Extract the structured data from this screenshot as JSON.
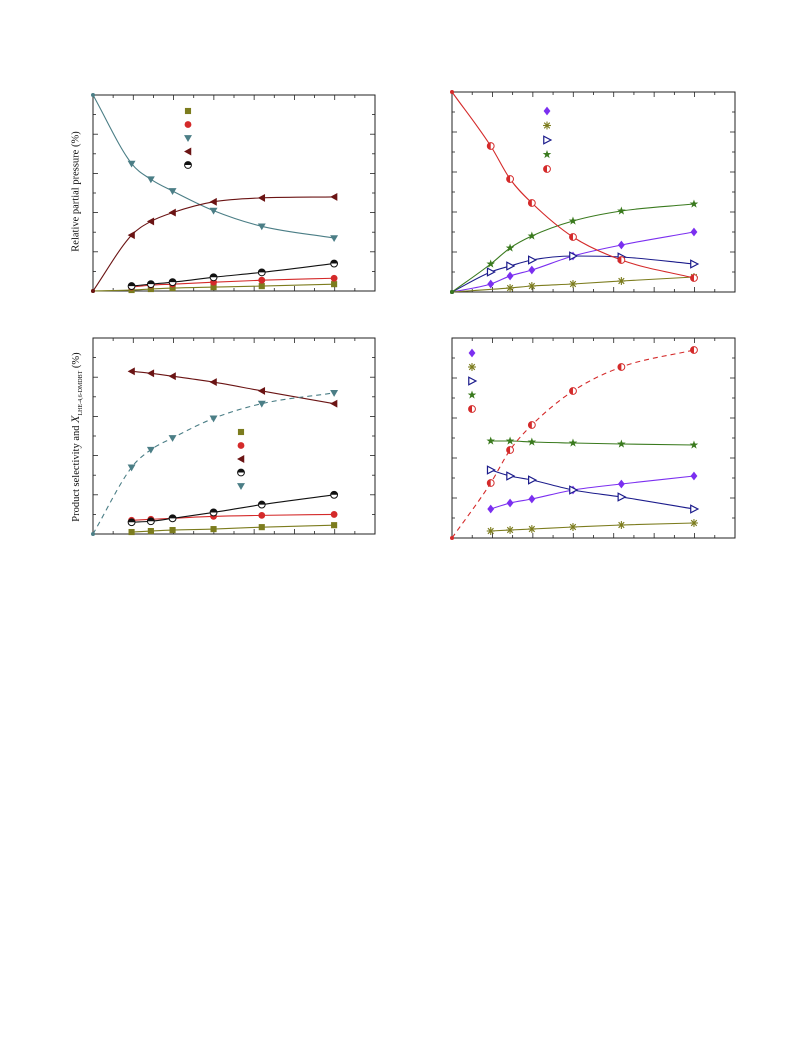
{
  "labels": {
    "ylabel_top": "Relative partial pressure (%)",
    "ylabel_bottom_pre": "Product selectivity and ",
    "ylabel_bottom_symbol": "X",
    "ylabel_bottom_sub": "LHE-4,6-DMDBT",
    "ylabel_bottom_post": " (%)"
  },
  "colors": {
    "olive": "#7c7c1e",
    "red": "#d42a2a",
    "teal": "#4b7e86",
    "maroon": "#6b1414",
    "black": "#111111",
    "purple": "#7b2ff0",
    "navy": "#1c1c8c",
    "green": "#3a7a1e"
  },
  "chart_data": [
    {
      "type": "scatter",
      "panel": "top-left",
      "xlim": [
        0,
        1
      ],
      "ylim": [
        0,
        100
      ],
      "legend": "top-center",
      "series": [
        {
          "marker": "square",
          "color": "olive",
          "x": [
            0,
            0.16,
            0.24,
            0.33,
            0.5,
            0.7,
            1.0
          ],
          "y": [
            0,
            0.5,
            1,
            1.5,
            2,
            2.5,
            3.5
          ],
          "fit": "solid"
        },
        {
          "marker": "circle",
          "color": "red",
          "x": [
            0.16,
            0.24,
            0.33,
            0.5,
            0.7,
            1.0
          ],
          "y": [
            2,
            3,
            3.5,
            4.5,
            5.5,
            6.5
          ],
          "fit": "solid"
        },
        {
          "marker": "triangle-down",
          "color": "teal",
          "x": [
            0,
            0.16,
            0.24,
            0.33,
            0.5,
            0.7,
            1.0
          ],
          "y": [
            100,
            65,
            57,
            51,
            41,
            33,
            27
          ],
          "fit": "solid"
        },
        {
          "marker": "triangle-left",
          "color": "maroon",
          "x": [
            0,
            0.16,
            0.24,
            0.33,
            0.5,
            0.7,
            1.0
          ],
          "y": [
            0,
            28.5,
            35.5,
            40,
            45.5,
            47.5,
            48
          ],
          "fit": "solid"
        },
        {
          "marker": "half-circle",
          "color": "black",
          "x": [
            0.16,
            0.24,
            0.33,
            0.5,
            0.7,
            1.0
          ],
          "y": [
            2.5,
            3.5,
            4.5,
            7,
            9.5,
            14
          ],
          "fit": "solid"
        }
      ]
    },
    {
      "type": "scatter",
      "panel": "top-right",
      "xlim": [
        0,
        1
      ],
      "ylim": [
        0,
        100
      ],
      "legend": "top-center",
      "series": [
        {
          "marker": "diamond",
          "color": "purple",
          "x": [
            0,
            0.16,
            0.24,
            0.33,
            0.5,
            0.7,
            1.0
          ],
          "y": [
            0,
            4,
            8,
            11,
            18,
            23.5,
            30
          ],
          "fit": "solid"
        },
        {
          "marker": "asterisk",
          "color": "olive",
          "x": [
            0,
            0.24,
            0.33,
            0.5,
            0.7,
            1.0
          ],
          "y": [
            0,
            2,
            3,
            4,
            5.5,
            7.5
          ],
          "fit": "solid"
        },
        {
          "marker": "triangle-right-open",
          "color": "navy",
          "x": [
            0,
            0.16,
            0.24,
            0.33,
            0.5,
            0.7,
            1.0
          ],
          "y": [
            0,
            10,
            13,
            16,
            18,
            17.5,
            14
          ],
          "fit": "solid"
        },
        {
          "marker": "star",
          "color": "green",
          "x": [
            0,
            0.16,
            0.24,
            0.33,
            0.5,
            0.7,
            1.0
          ],
          "y": [
            0,
            14,
            22,
            28,
            35.5,
            40.5,
            44
          ],
          "fit": "solid"
        },
        {
          "marker": "half-circle-v",
          "color": "red",
          "x": [
            0,
            0.16,
            0.24,
            0.33,
            0.5,
            0.7,
            1.0
          ],
          "y": [
            100,
            73,
            56.5,
            44.5,
            27.5,
            16,
            7
          ],
          "fit": "solid"
        }
      ]
    },
    {
      "type": "scatter",
      "panel": "bottom-left",
      "xlim": [
        0,
        1
      ],
      "ylim": [
        0,
        100
      ],
      "legend": "center-right",
      "series": [
        {
          "marker": "square",
          "color": "olive",
          "x": [
            0.16,
            0.24,
            0.33,
            0.5,
            0.7,
            1.0
          ],
          "y": [
            1,
            1.5,
            2,
            2.5,
            3.5,
            4.5
          ],
          "fit": "solid"
        },
        {
          "marker": "circle",
          "color": "red",
          "x": [
            0.16,
            0.24,
            0.33,
            0.5,
            0.7,
            1.0
          ],
          "y": [
            7,
            7.5,
            8,
            9,
            9.5,
            10
          ],
          "fit": "solid"
        },
        {
          "marker": "triangle-left",
          "color": "maroon",
          "x": [
            0.16,
            0.24,
            0.33,
            0.5,
            0.7,
            1.0
          ],
          "y": [
            83,
            82,
            80.5,
            77.5,
            73,
            66.5
          ],
          "fit": "solid"
        },
        {
          "marker": "half-circle",
          "color": "black",
          "x": [
            0.16,
            0.24,
            0.33,
            0.5,
            0.7,
            1.0
          ],
          "y": [
            6,
            6.5,
            8,
            11,
            15,
            20
          ],
          "fit": "solid"
        },
        {
          "marker": "triangle-down",
          "color": "teal",
          "x": [
            0,
            0.16,
            0.24,
            0.33,
            0.5,
            0.7,
            1.0
          ],
          "y": [
            0,
            34,
            43,
            49,
            59,
            66.5,
            72
          ],
          "fit": "dashed"
        }
      ]
    },
    {
      "type": "scatter",
      "panel": "bottom-right",
      "xlim": [
        0,
        1
      ],
      "ylim": [
        0,
        100
      ],
      "legend": "top-left",
      "series": [
        {
          "marker": "diamond",
          "color": "purple",
          "x": [
            0.16,
            0.24,
            0.33,
            0.5,
            0.7,
            1.0
          ],
          "y": [
            14.5,
            17.5,
            19.5,
            24,
            27,
            31
          ],
          "fit": "solid"
        },
        {
          "marker": "asterisk",
          "color": "olive",
          "x": [
            0.16,
            0.24,
            0.33,
            0.5,
            0.7,
            1.0
          ],
          "y": [
            3.5,
            4,
            4.5,
            5.5,
            6.5,
            7.5
          ],
          "fit": "solid"
        },
        {
          "marker": "triangle-right-open",
          "color": "navy",
          "x": [
            0.16,
            0.24,
            0.33,
            0.5,
            0.7,
            1.0
          ],
          "y": [
            34,
            31,
            29,
            24,
            20.5,
            14.5
          ],
          "fit": "solid"
        },
        {
          "marker": "star",
          "color": "green",
          "x": [
            0.16,
            0.24,
            0.33,
            0.5,
            0.7,
            1.0
          ],
          "y": [
            48.5,
            48.5,
            48,
            47.5,
            47,
            46.5
          ],
          "fit": "solid"
        },
        {
          "marker": "half-circle-v",
          "color": "red",
          "x": [
            0,
            0.16,
            0.24,
            0.33,
            0.5,
            0.7,
            1.0
          ],
          "y": [
            0,
            27.5,
            44,
            56.5,
            73.5,
            85.5,
            94
          ],
          "fit": "dashed"
        }
      ]
    }
  ]
}
